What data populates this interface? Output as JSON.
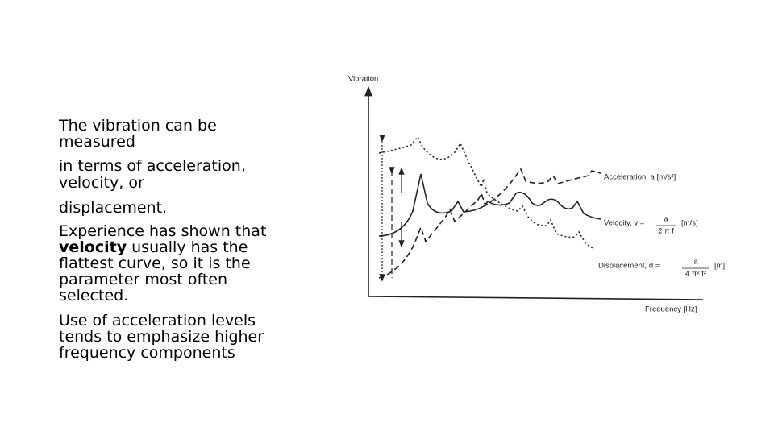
{
  "body": {
    "lines": [
      "The vibration can be",
      "measured",
      "in terms of acceleration,",
      "velocity, or",
      "displacement.",
      "Experience has shown that",
      {
        "bold": "velocity",
        "text": " usually has the"
      },
      "flattest curve, so it is the",
      "parameter most often",
      "selected.",
      "Use of acceleration levels",
      "tends to emphasize higher",
      "frequency components"
    ]
  },
  "diagram": {
    "y_axis": "Vibration",
    "x_axis": "Frequency [Hz]",
    "acceleration": "Acceleration, a [m/s²]",
    "velocity": {
      "label": "Velocity, v =",
      "numerator": "a",
      "denominator": "2 π f",
      "unit": "[m/s]"
    },
    "displacement": {
      "label": "Displacement, d =",
      "numerator": "a",
      "denominator": "4 π² f²",
      "unit": "[m]"
    }
  }
}
